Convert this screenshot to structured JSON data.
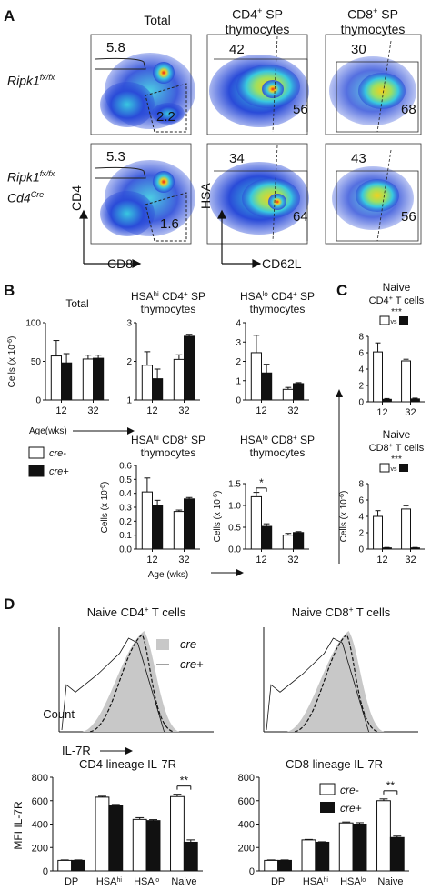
{
  "panelA": {
    "letter": "A",
    "col_titles": [
      "Total",
      "CD4",
      "SP",
      "thymocytes",
      "CD8",
      "SP",
      "thymocytes"
    ],
    "row_labels": [
      {
        "main": "Ripk1",
        "sup": "fx/fx"
      },
      {
        "main": "Ripk1",
        "sup": "fx/fx",
        "line2": "Cd4",
        "line2sup": "Cre"
      }
    ],
    "plot_numbers": [
      [
        "5.8",
        "2.2",
        "42",
        "56",
        "30",
        "68"
      ],
      [
        "5.3",
        "1.6",
        "34",
        "64",
        "43",
        "56"
      ]
    ],
    "axes": {
      "cd4": "CD4",
      "cd8": "CD8",
      "hsa": "HSA",
      "cd62l": "CD62L"
    }
  },
  "panelB": {
    "letter": "B",
    "legend": [
      "cre-",
      "cre+"
    ],
    "arrow_label": "Age(wks)",
    "age_label": "Age (wks)",
    "ylabel": "Cells (x 10",
    "ylabel_exp": "-6",
    "charts": [
      {
        "title": [
          "Total"
        ],
        "ticks": [
          "0",
          "50",
          "100"
        ],
        "ymax": 100,
        "cre_minus": [
          57,
          53
        ],
        "cre_plus": [
          48,
          54
        ],
        "err_minus": [
          20,
          5
        ],
        "err_plus": [
          12,
          4
        ],
        "x": [
          "12",
          "32"
        ]
      },
      {
        "title": [
          "HSA",
          "hi",
          " CD4",
          "+",
          " SP",
          "thymocytes"
        ],
        "ticks": [
          "1",
          "2",
          "3"
        ],
        "ymin": 1,
        "ymax": 3,
        "cre_minus": [
          1.9,
          2.05
        ],
        "cre_plus": [
          1.55,
          2.65
        ],
        "err_minus": [
          0.35,
          0.12
        ],
        "err_plus": [
          0.25,
          0.05
        ],
        "x": [
          "12",
          "32"
        ]
      },
      {
        "title": [
          "HSA",
          "lo",
          " CD4",
          "+",
          " SP",
          "thymocytes"
        ],
        "ticks": [
          "0",
          "1",
          "2",
          "3",
          "4"
        ],
        "ymax": 4,
        "cre_minus": [
          2.45,
          0.55
        ],
        "cre_plus": [
          1.4,
          0.85
        ],
        "err_minus": [
          0.9,
          0.1
        ],
        "err_plus": [
          0.45,
          0.05
        ],
        "x": [
          "12",
          "32"
        ]
      },
      {
        "title": [
          "HSA",
          "hi",
          " CD8",
          "+",
          " SP",
          "thymocytes"
        ],
        "ticks": [
          "0.0",
          "0.1",
          "0.2",
          "0.3",
          "0.4",
          "0.5",
          "0.6"
        ],
        "ymax": 0.6,
        "cre_minus": [
          0.41,
          0.27
        ],
        "cre_plus": [
          0.31,
          0.36
        ],
        "err_minus": [
          0.1,
          0.01
        ],
        "err_plus": [
          0.04,
          0.01
        ],
        "x": [
          "12",
          "32"
        ]
      },
      {
        "title": [
          "HSA",
          "lo",
          " CD8",
          "+",
          " SP",
          "thymocytes"
        ],
        "ticks": [
          "0.0",
          "0.5",
          "1.0",
          "1.5"
        ],
        "ymax": 1.5,
        "cre_minus": [
          1.2,
          0.32
        ],
        "cre_plus": [
          0.52,
          0.38
        ],
        "err_minus": [
          0.1,
          0.04
        ],
        "err_plus": [
          0.06,
          0.02
        ],
        "x": [
          "12",
          "32"
        ],
        "sig": "*"
      }
    ]
  },
  "panelC": {
    "letter": "C",
    "charts": [
      {
        "title": [
          "Naive",
          "CD4",
          "+",
          " T cells"
        ],
        "ticks": [
          "0",
          "2",
          "4",
          "6",
          "8"
        ],
        "ymax": 8,
        "cre_minus": [
          6.1,
          5.0
        ],
        "cre_plus": [
          0.3,
          0.35
        ],
        "err_minus": [
          1.1,
          0.2
        ],
        "err_plus": [
          0.1,
          0.1
        ],
        "x": [
          "12",
          "32"
        ],
        "sig": "***",
        "vs": "vs"
      },
      {
        "title": [
          "Naive",
          "CD8",
          "+",
          " T cells"
        ],
        "ticks": [
          "0",
          "2",
          "4",
          "6",
          "8"
        ],
        "ymax": 8,
        "cre_minus": [
          4.0,
          4.9
        ],
        "cre_plus": [
          0.15,
          0.15
        ],
        "err_minus": [
          0.7,
          0.4
        ],
        "err_plus": [
          0.05,
          0.05
        ],
        "x": [
          "12",
          "32"
        ],
        "sig": "***",
        "vs": "vs"
      }
    ],
    "ylabel": "Cells (x 10",
    "ylabel_exp": "-6"
  },
  "panelD": {
    "letter": "D",
    "hist_titles": [
      [
        "Naive CD4",
        "+",
        " T cells"
      ],
      [
        "Naive CD8",
        "+",
        " T cells"
      ]
    ],
    "legend": [
      "cre–",
      "cre+"
    ],
    "count_label": "Count",
    "il7r_label": "IL-7R",
    "bars": [
      {
        "title": "CD4 lineage IL-7R",
        "categories": [
          "DP",
          "HSA",
          "HSA",
          "Naive"
        ],
        "cat_sup": [
          "",
          "hi",
          "lo",
          ""
        ],
        "ticks": [
          "0",
          "200",
          "400",
          "600",
          "800"
        ],
        "ymax": 800,
        "cre_minus": [
          90,
          630,
          440,
          635
        ],
        "cre_plus": [
          90,
          560,
          430,
          245
        ],
        "err_minus": [
          4,
          8,
          15,
          20
        ],
        "err_plus": [
          4,
          8,
          8,
          20
        ],
        "sig": "**"
      },
      {
        "title": "CD8 lineage IL-7R",
        "categories": [
          "DP",
          "HSA",
          "HSA",
          "Naive"
        ],
        "cat_sup": [
          "",
          "hi",
          "lo",
          ""
        ],
        "ticks": [
          "0",
          "200",
          "400",
          "600",
          "800"
        ],
        "ymax": 800,
        "cre_minus": [
          90,
          265,
          410,
          600
        ],
        "cre_plus": [
          90,
          245,
          400,
          285
        ],
        "err_minus": [
          4,
          4,
          8,
          15
        ],
        "err_plus": [
          4,
          4,
          12,
          12
        ],
        "sig": "**"
      }
    ],
    "ylabel": "MFI IL-7R",
    "legend_bar": [
      "cre-",
      "cre+"
    ]
  },
  "colors": {
    "flow_low": "#2a4bd8",
    "flow_mid": "#38c8e0",
    "flow_hi": "#f0d020",
    "flow_peak": "#e8201c",
    "histogram_fill": "#c8c8c8"
  }
}
